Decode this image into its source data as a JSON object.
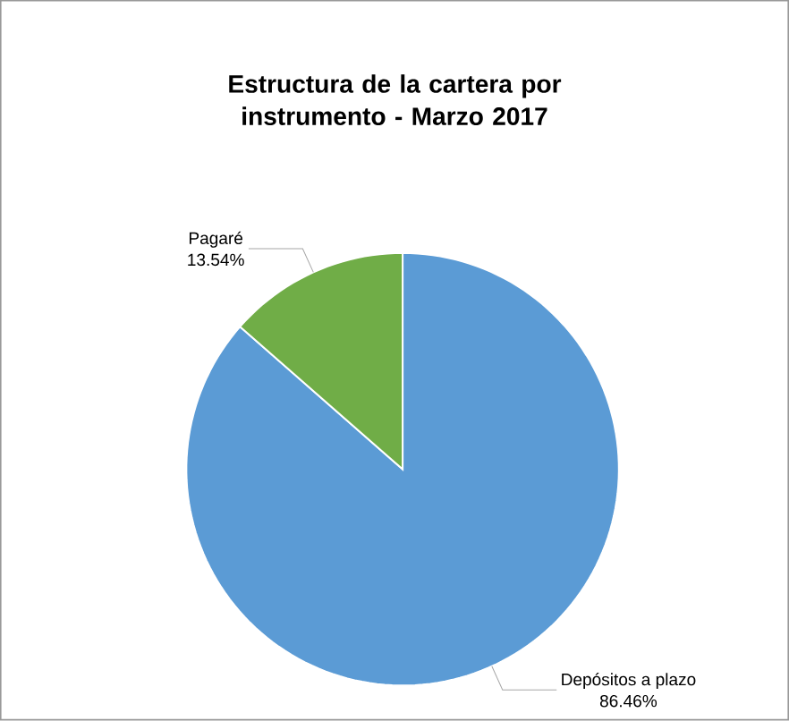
{
  "chart_data": {
    "type": "pie",
    "title": "Estructura de la cartera por instrumento - Marzo 2017",
    "categories": [
      "Depósitos a plazo",
      "Pagaré"
    ],
    "values": [
      86.46,
      13.54
    ],
    "value_labels": [
      "86.46%",
      "13.54%"
    ],
    "colors": [
      "#5b9bd5",
      "#70ad47"
    ]
  }
}
